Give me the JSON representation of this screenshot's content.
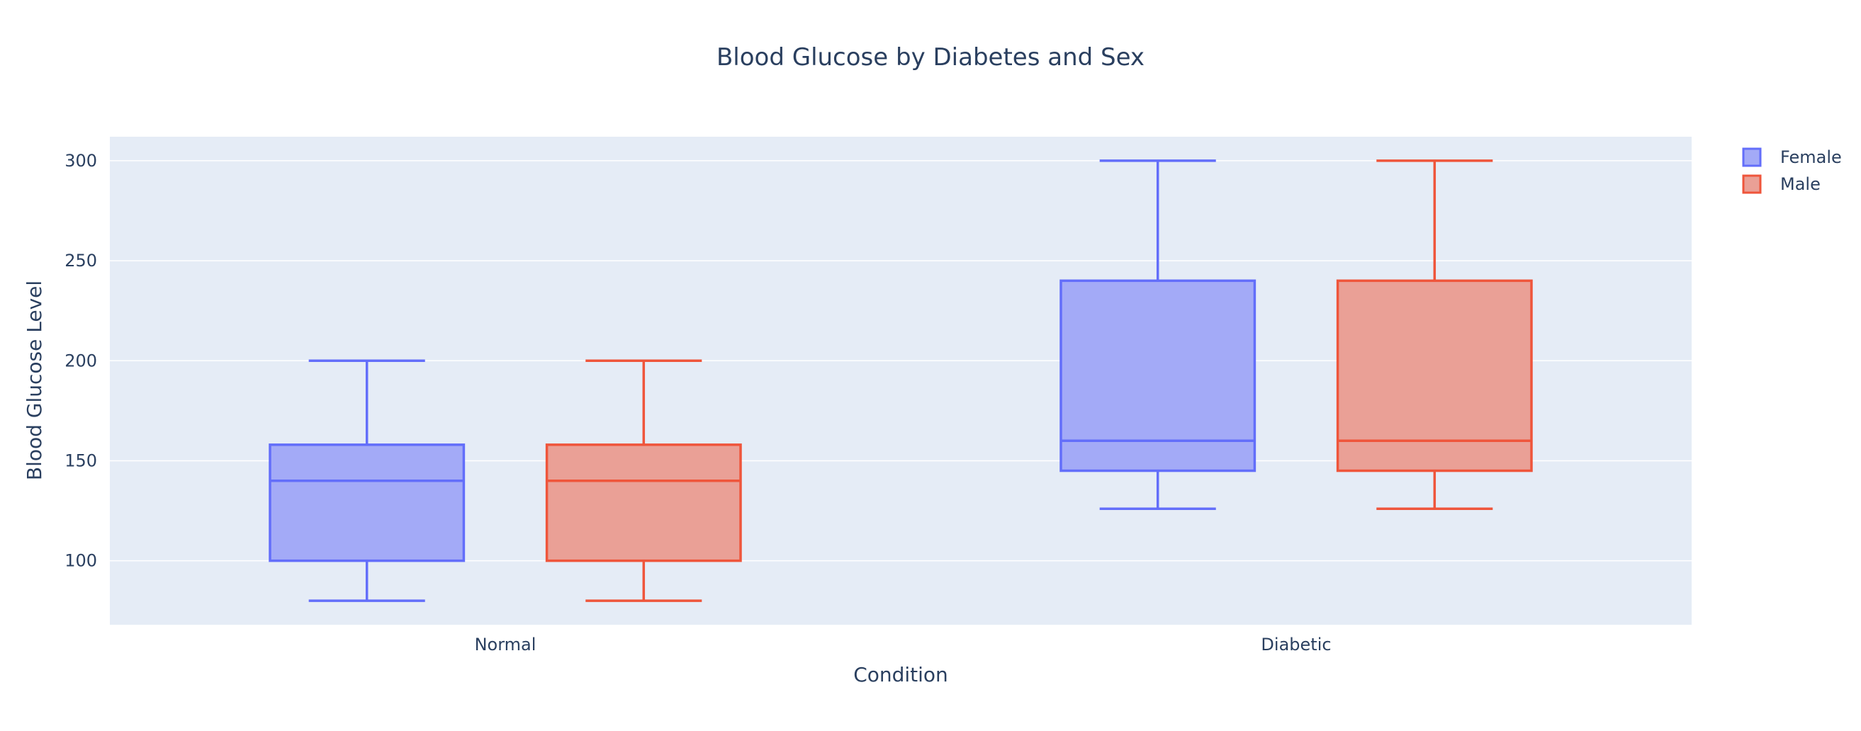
{
  "chart_data": {
    "type": "box",
    "title": "Blood Glucose by Diabetes and Sex",
    "xlabel": "Condition",
    "ylabel": "Blood Glucose Level",
    "categories": [
      "Normal",
      "Diabetic"
    ],
    "ylim": [
      68,
      312
    ],
    "yticks": [
      100,
      150,
      200,
      250,
      300
    ],
    "grid": true,
    "legend_position": "top-right",
    "series": [
      {
        "name": "Female",
        "color": "#636efa",
        "fill": "#a3aaf7",
        "boxes": [
          {
            "category": "Normal",
            "min": 80,
            "q1": 100,
            "median": 140,
            "q3": 158,
            "max": 200
          },
          {
            "category": "Diabetic",
            "min": 126,
            "q1": 145,
            "median": 160,
            "q3": 240,
            "max": 300
          }
        ]
      },
      {
        "name": "Male",
        "color": "#ef553b",
        "fill": "#eaa096",
        "boxes": [
          {
            "category": "Normal",
            "min": 80,
            "q1": 100,
            "median": 140,
            "q3": 158,
            "max": 200
          },
          {
            "category": "Diabetic",
            "min": 126,
            "q1": 145,
            "median": 160,
            "q3": 240,
            "max": 300
          }
        ]
      }
    ]
  },
  "colors": {
    "plot_background": "#e5ecf6",
    "grid": "#ffffff",
    "text": "#2a3f5f"
  }
}
